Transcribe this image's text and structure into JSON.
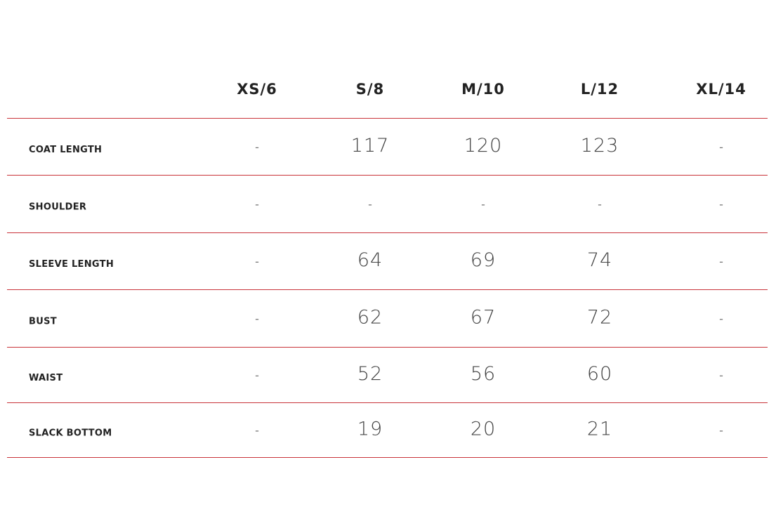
{
  "table": {
    "columns": [
      "XS/6",
      "S/8",
      "M/10",
      "L/12",
      "XL/14"
    ],
    "rows": [
      {
        "label": "COAT LENGTH",
        "cells": [
          "-",
          117,
          120,
          123,
          "-"
        ]
      },
      {
        "label": "SHOULDER",
        "cells": [
          "-",
          "-",
          "-",
          "-",
          "-"
        ]
      },
      {
        "label": "SLEEVE LENGTH",
        "cells": [
          "-",
          64,
          69,
          74,
          "-"
        ]
      },
      {
        "label": "BUST",
        "cells": [
          "-",
          62,
          67,
          72,
          "-"
        ]
      },
      {
        "label": "WAIST",
        "cells": [
          "-",
          52,
          56,
          60,
          "-"
        ]
      },
      {
        "label": "SLACK BOTTOM",
        "cells": [
          "-",
          19,
          20,
          21,
          "-"
        ]
      }
    ]
  }
}
